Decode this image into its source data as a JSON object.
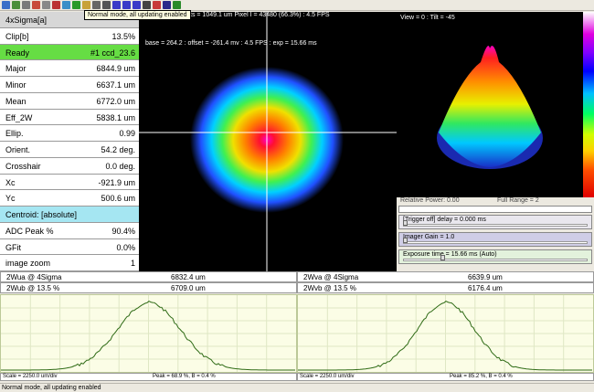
{
  "toolbar": {
    "icons": [
      "open-file-icon",
      "save-icon",
      "print-icon",
      "copy-icon",
      "undo-icon",
      "pencil-icon",
      "zoom-icon",
      "play-icon",
      "color-palette-icon",
      "grid-icon",
      "settings-icon",
      "text-xg-icon",
      "text-xp-icon",
      "text-xu-icon",
      "camera-icon",
      "crosshair-icon",
      "target-icon",
      "chart-icon"
    ],
    "tooltip": "Normal mode, all updating enabled"
  },
  "camera": {
    "header": "ts = 1049.1 um Pixel I = 43480 (66.3%) :   4.5 FPS",
    "status": "base = 264.2 : offset = -261.4 mv :    4.5 FPS   : exp = 15.66 ms"
  },
  "left_panel": {
    "rows": [
      {
        "label": "4xSigma[a]",
        "value": ""
      },
      {
        "label": "Clip[b]",
        "value": "13.5%"
      },
      {
        "label": "Ready",
        "value": "#1 ccd_23.6"
      },
      {
        "label": "Major",
        "value": "6844.9 um"
      },
      {
        "label": "Minor",
        "value": "6637.1 um"
      },
      {
        "label": "Mean",
        "value": "6772.0 um"
      },
      {
        "label": "Eff_2W",
        "value": "5838.1 um"
      },
      {
        "label": "Ellip.",
        "value": "0.99"
      },
      {
        "label": "Orient.",
        "value": "54.2 deg."
      },
      {
        "label": "Crosshair",
        "value": "0.0 deg."
      },
      {
        "label": "Xc",
        "value": "-921.9 um"
      },
      {
        "label": "Yc",
        "value": "500.6 um"
      },
      {
        "label": "Centroid: [absolute]",
        "value": ""
      },
      {
        "label": "ADC Peak %",
        "value": "90.4%"
      },
      {
        "label": "GFit",
        "value": "0.0%"
      },
      {
        "label": "image zoom",
        "value": "1"
      }
    ]
  },
  "view3d": {
    "label": "View = 0 : Tilt = -45"
  },
  "right_panel": {
    "relative_power": "Relative Power: 0.00",
    "full_range": "Full Range = 2",
    "trigger": "[Trigger off] delay = 0.000 ms",
    "gain": "Imager Gain = 1.0",
    "exposure": "Exposure time = 15.66 ms (Auto)"
  },
  "profiles": {
    "left": {
      "row1_label": "2Wua @ 4Sigma",
      "row1_value": "6832.4 um",
      "row2_label": "2Wub @ 13.5 %",
      "row2_value": "6709.0 um",
      "scale": "Scale = 2250.0 um/div",
      "peak": "Peak = 68.9 %,  B = 0.4 %"
    },
    "right": {
      "row1_label": "2Wva @ 4Sigma",
      "row1_value": "6639.9 um",
      "row2_label": "2Wvb @ 13.5 %",
      "row2_value": "6176.4 um",
      "scale": "Scale = 2250.0 um/div",
      "peak": "Peak = 85.2 %,  B = 0.4 %"
    }
  },
  "status_bar": "Normal mode, all updating enabled",
  "colors": {
    "ready_row": "#66dd44",
    "centroid_row": "#a5e6f2",
    "profile_line": "#2f6b16"
  }
}
